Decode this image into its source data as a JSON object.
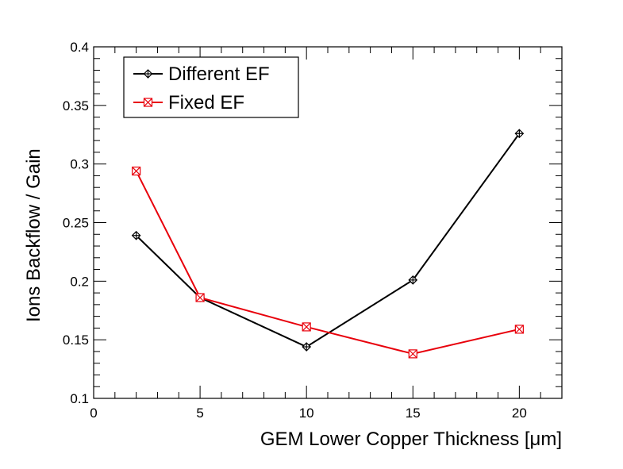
{
  "chart_data": {
    "type": "line",
    "title": "",
    "xlabel": "GEM Lower Copper Thickness [μm]",
    "ylabel": "Ions Backflow / Gain",
    "xlim": [
      0,
      22
    ],
    "ylim": [
      0.1,
      0.4
    ],
    "x_ticks": [
      0,
      5,
      10,
      15,
      20
    ],
    "x_tick_labels": [
      "0",
      "5",
      "10",
      "15",
      "20"
    ],
    "y_ticks": [
      0.1,
      0.15,
      0.2,
      0.25,
      0.3,
      0.35,
      0.4
    ],
    "y_tick_labels": [
      "0.1",
      "0.15",
      "0.2",
      "0.25",
      "0.3",
      "0.35",
      "0.4"
    ],
    "grid": false,
    "legend_position": "top-left",
    "series": [
      {
        "name": "Different EF",
        "color": "#000000",
        "marker": "open-diamond-cross",
        "x": [
          2,
          5,
          10,
          15,
          20
        ],
        "values": [
          0.239,
          0.186,
          0.144,
          0.201,
          0.326
        ]
      },
      {
        "name": "Fixed EF",
        "color": "#e8000b",
        "marker": "open-square-x",
        "x": [
          2,
          5,
          10,
          15,
          20
        ],
        "values": [
          0.294,
          0.186,
          0.161,
          0.138,
          0.159
        ]
      }
    ]
  }
}
